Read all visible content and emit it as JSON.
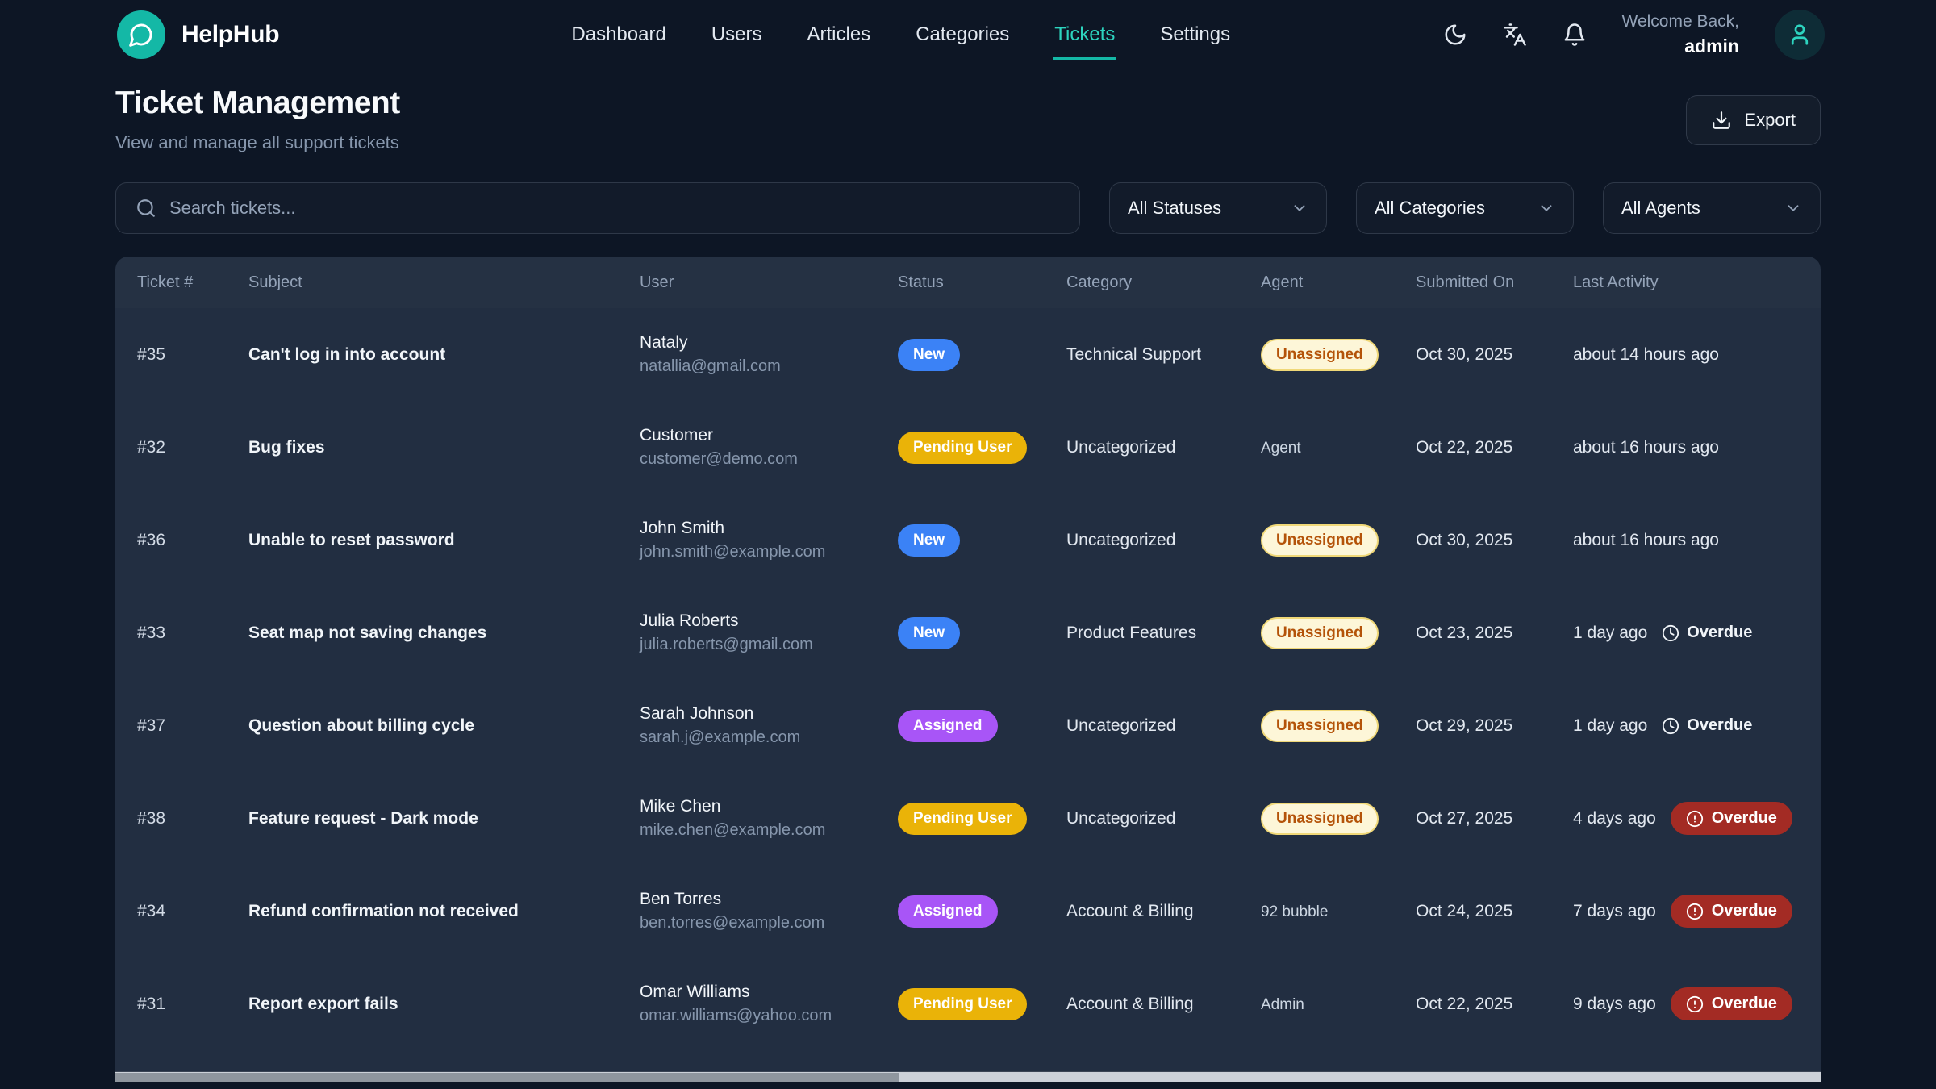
{
  "brand": {
    "name": "HelpHub"
  },
  "nav": {
    "items": [
      {
        "label": "Dashboard",
        "active": false
      },
      {
        "label": "Users",
        "active": false
      },
      {
        "label": "Articles",
        "active": false
      },
      {
        "label": "Categories",
        "active": false
      },
      {
        "label": "Tickets",
        "active": true
      },
      {
        "label": "Settings",
        "active": false
      }
    ]
  },
  "user": {
    "greeting": "Welcome Back,",
    "name": "admin"
  },
  "page": {
    "title": "Ticket Management",
    "subtitle": "View and manage all support tickets",
    "export_label": "Export"
  },
  "filters": {
    "search_placeholder": "Search tickets...",
    "status_filter": "All Statuses",
    "category_filter": "All Categories",
    "agent_filter": "All Agents"
  },
  "table": {
    "columns": [
      "Ticket #",
      "Subject",
      "User",
      "Status",
      "Category",
      "Agent",
      "Submitted On",
      "Last Activity"
    ],
    "rows": [
      {
        "id": "#35",
        "subject": "Can't log in into account",
        "user_name": "Nataly",
        "user_email": "natallia@gmail.com",
        "status": "New",
        "status_type": "new",
        "category": "Technical Support",
        "agent": "Unassigned",
        "agent_type": "unassigned",
        "submitted": "Oct 30, 2025",
        "activity": "about 14 hours ago",
        "overdue": "none",
        "overdue_label": ""
      },
      {
        "id": "#32",
        "subject": "Bug fixes",
        "user_name": "Customer",
        "user_email": "customer@demo.com",
        "status": "Pending User",
        "status_type": "pending",
        "category": "Uncategorized",
        "agent": "Agent",
        "agent_type": "named",
        "submitted": "Oct 22, 2025",
        "activity": "about 16 hours ago",
        "overdue": "none",
        "overdue_label": ""
      },
      {
        "id": "#36",
        "subject": "Unable to reset password",
        "user_name": "John Smith",
        "user_email": "john.smith@example.com",
        "status": "New",
        "status_type": "new",
        "category": "Uncategorized",
        "agent": "Unassigned",
        "agent_type": "unassigned",
        "submitted": "Oct 30, 2025",
        "activity": "about 16 hours ago",
        "overdue": "none",
        "overdue_label": ""
      },
      {
        "id": "#33",
        "subject": "Seat map not saving changes",
        "user_name": "Julia Roberts",
        "user_email": "julia.roberts@gmail.com",
        "status": "New",
        "status_type": "new",
        "category": "Product Features",
        "agent": "Unassigned",
        "agent_type": "unassigned",
        "submitted": "Oct 23, 2025",
        "activity": "1 day ago",
        "overdue": "plain",
        "overdue_label": "Overdue"
      },
      {
        "id": "#37",
        "subject": "Question about billing cycle",
        "user_name": "Sarah Johnson",
        "user_email": "sarah.j@example.com",
        "status": "Assigned",
        "status_type": "assigned",
        "category": "Uncategorized",
        "agent": "Unassigned",
        "agent_type": "unassigned",
        "submitted": "Oct 29, 2025",
        "activity": "1 day ago",
        "overdue": "plain",
        "overdue_label": "Overdue"
      },
      {
        "id": "#38",
        "subject": "Feature request - Dark mode",
        "user_name": "Mike Chen",
        "user_email": "mike.chen@example.com",
        "status": "Pending User",
        "status_type": "pending",
        "category": "Uncategorized",
        "agent": "Unassigned",
        "agent_type": "unassigned",
        "submitted": "Oct 27, 2025",
        "activity": "4 days ago",
        "overdue": "badge",
        "overdue_label": "Overdue"
      },
      {
        "id": "#34",
        "subject": "Refund confirmation not received",
        "user_name": "Ben Torres",
        "user_email": "ben.torres@example.com",
        "status": "Assigned",
        "status_type": "assigned",
        "category": "Account & Billing",
        "agent": "92 bubble",
        "agent_type": "named",
        "submitted": "Oct 24, 2025",
        "activity": "7 days ago",
        "overdue": "badge",
        "overdue_label": "Overdue"
      },
      {
        "id": "#31",
        "subject": "Report export fails",
        "user_name": "Omar Williams",
        "user_email": "omar.williams@yahoo.com",
        "status": "Pending User",
        "status_type": "pending",
        "category": "Account & Billing",
        "agent": "Admin",
        "agent_type": "named",
        "submitted": "Oct 22, 2025",
        "activity": "9 days ago",
        "overdue": "badge",
        "overdue_label": "Overdue"
      }
    ]
  },
  "colors": {
    "accent_teal": "#14b8a6",
    "status_new": "#3b82f6",
    "status_pending": "#eab308",
    "status_assigned": "#a855f7",
    "unassigned_bg": "#fdf6d8",
    "unassigned_text": "#b45309",
    "overdue_red": "#a32b24",
    "page_bg": "#0d1625",
    "panel_bg": "#222e41"
  }
}
